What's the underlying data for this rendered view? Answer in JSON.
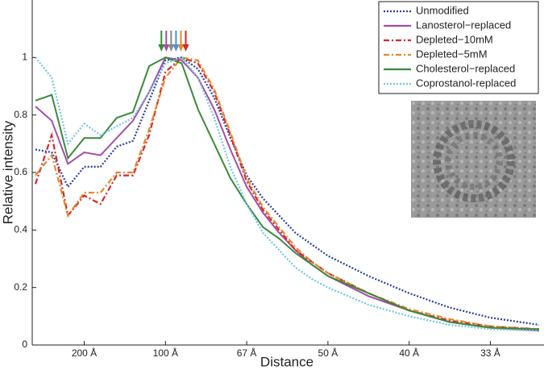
{
  "chart_data": {
    "type": "line",
    "x_label": "Distance",
    "y_label": "Relative intensity",
    "x": [
      0.002,
      0.003,
      0.004,
      0.005,
      0.006,
      0.007,
      0.008,
      0.009,
      0.01,
      0.011,
      0.012,
      0.013,
      0.014,
      0.015,
      0.016,
      0.017,
      0.018,
      0.019,
      0.02,
      0.0225,
      0.025,
      0.0275,
      0.03,
      0.033
    ],
    "series": [
      {
        "name": "Unmodified",
        "color": "#2b3f9e",
        "dash": "dotted",
        "values": [
          0.68,
          0.67,
          0.55,
          0.62,
          0.62,
          0.69,
          0.71,
          0.85,
          0.99,
          1.0,
          0.96,
          0.86,
          0.72,
          0.59,
          0.51,
          0.45,
          0.39,
          0.35,
          0.31,
          0.24,
          0.18,
          0.13,
          0.095,
          0.07
        ]
      },
      {
        "name": "Lanosterol−replaced",
        "color": "#a64ca6",
        "dash": "solid",
        "values": [
          0.83,
          0.78,
          0.63,
          0.67,
          0.66,
          0.72,
          0.78,
          0.88,
          1.0,
          0.99,
          0.93,
          0.82,
          0.68,
          0.55,
          0.46,
          0.39,
          0.33,
          0.28,
          0.24,
          0.17,
          0.12,
          0.08,
          0.06,
          0.05
        ]
      },
      {
        "name": "Depleted−10mM",
        "color": "#d7262a",
        "dash": "dashdot",
        "values": [
          0.56,
          0.73,
          0.45,
          0.52,
          0.49,
          0.59,
          0.59,
          0.73,
          0.95,
          1.0,
          0.98,
          0.88,
          0.73,
          0.57,
          0.47,
          0.4,
          0.33,
          0.29,
          0.25,
          0.18,
          0.12,
          0.085,
          0.065,
          0.055
        ]
      },
      {
        "name": "Depleted−5mM",
        "color": "#e08a2c",
        "dash": "dashdot",
        "values": [
          0.59,
          0.66,
          0.45,
          0.53,
          0.53,
          0.6,
          0.6,
          0.75,
          0.93,
          1.0,
          0.99,
          0.89,
          0.74,
          0.58,
          0.48,
          0.41,
          0.34,
          0.29,
          0.25,
          0.18,
          0.125,
          0.09,
          0.065,
          0.055
        ]
      },
      {
        "name": "Cholesterol−replaced",
        "color": "#3a8a3a",
        "dash": "solid",
        "values": [
          0.85,
          0.87,
          0.65,
          0.72,
          0.72,
          0.79,
          0.81,
          0.97,
          1.0,
          0.98,
          0.82,
          0.7,
          0.58,
          0.49,
          0.41,
          0.37,
          0.32,
          0.28,
          0.24,
          0.18,
          0.12,
          0.08,
          0.06,
          0.055
        ]
      },
      {
        "name": "Coprostanol-replaced",
        "color": "#6fc6e0",
        "dash": "dotted",
        "values": [
          1.0,
          0.93,
          0.7,
          0.77,
          0.73,
          0.76,
          0.79,
          0.88,
          0.98,
          1.0,
          0.93,
          0.79,
          0.62,
          0.49,
          0.39,
          0.33,
          0.27,
          0.23,
          0.2,
          0.14,
          0.1,
          0.07,
          0.055,
          0.05
        ]
      }
    ],
    "peak_arrows": [
      {
        "x": 0.00975,
        "color": "#3a8a3a"
      },
      {
        "x": 0.01005,
        "color": "#a64ca6"
      },
      {
        "x": 0.01035,
        "color": "#888888"
      },
      {
        "x": 0.01065,
        "color": "#4a90d9"
      },
      {
        "x": 0.01095,
        "color": "#e08a2c"
      },
      {
        "x": 0.01125,
        "color": "#d7262a"
      }
    ],
    "xlim": [
      0.0018,
      0.0333
    ],
    "ylim": [
      0,
      1.2
    ],
    "xticks": [
      {
        "value": 0.005,
        "label": "200 Å"
      },
      {
        "value": 0.01,
        "label": "100 Å"
      },
      {
        "value": 0.015,
        "label": "67 Å"
      },
      {
        "value": 0.02,
        "label": "50 Å"
      },
      {
        "value": 0.025,
        "label": "40 Å"
      },
      {
        "value": 0.03,
        "label": "33 Å"
      }
    ],
    "yticks": [
      0,
      {
        "value": 0.2,
        "label": "0.2"
      },
      {
        "value": 0.4,
        "label": "0.4"
      },
      {
        "value": 0.6,
        "label": "0.6"
      },
      {
        "value": 0.8,
        "label": "0.8"
      },
      1
    ],
    "legend": "upper-right",
    "grid": false
  }
}
